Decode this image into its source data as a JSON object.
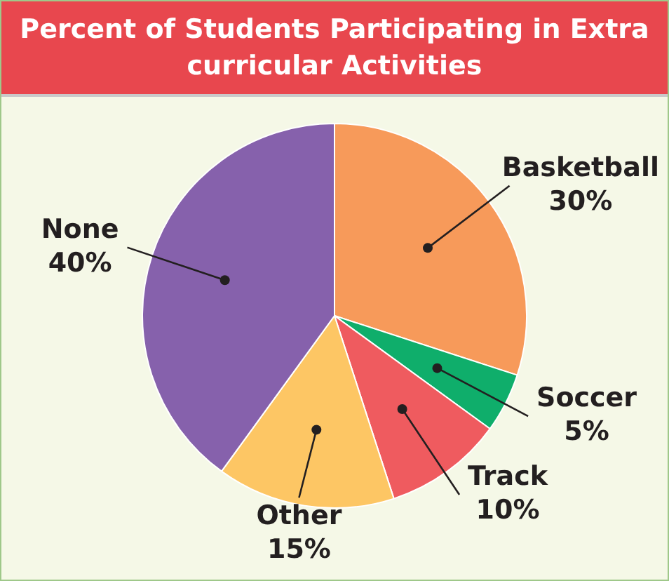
{
  "chart_data": {
    "type": "pie",
    "title": "Percent of Students Participating in Extra curricular Activities",
    "categories": [
      "Basketball",
      "Soccer",
      "Track",
      "Other",
      "None"
    ],
    "values": [
      30,
      5,
      10,
      15,
      40
    ],
    "colors": [
      "#f79a5a",
      "#0fae6b",
      "#ef5b5f",
      "#fdc664",
      "#8661ac"
    ],
    "value_labels": [
      "30%",
      "5%",
      "10%",
      "15%",
      "40%"
    ],
    "legend": false
  }
}
